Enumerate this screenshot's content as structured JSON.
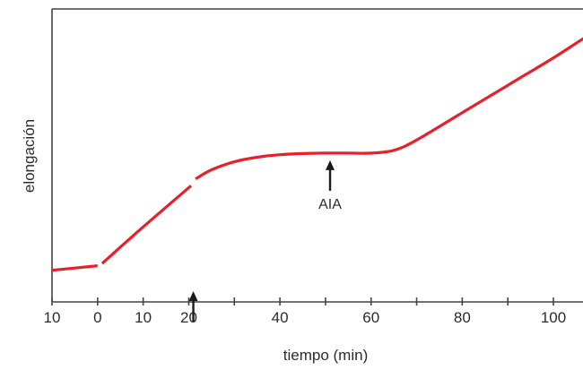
{
  "chart_data": {
    "type": "line",
    "title": "",
    "xlabel": "tiempo (min)",
    "ylabel": "elongación",
    "xlim": [
      -10,
      107
    ],
    "ylim": [
      0,
      100
    ],
    "grid": false,
    "line_color": "#e8202a",
    "x_ticks": [
      {
        "x": -10,
        "label": "10"
      },
      {
        "x": 0,
        "label": "0"
      },
      {
        "x": 10,
        "label": "10"
      },
      {
        "x": 20,
        "label": "20"
      },
      {
        "x": 30,
        "label": ""
      },
      {
        "x": 40,
        "label": "40"
      },
      {
        "x": 50,
        "label": ""
      },
      {
        "x": 60,
        "label": "60"
      },
      {
        "x": 70,
        "label": ""
      },
      {
        "x": 80,
        "label": "80"
      },
      {
        "x": 90,
        "label": ""
      },
      {
        "x": 100,
        "label": "100"
      }
    ],
    "series": [
      {
        "segments": [
          [
            [
              -10,
              6
            ],
            [
              0,
              8
            ]
          ],
          [
            [
              1,
              9
            ],
            [
              10,
              25
            ],
            [
              20.5,
              43
            ]
          ],
          [
            [
              21.5,
              46
            ],
            [
              25,
              50
            ],
            [
              30,
              53.5
            ],
            [
              35,
              55.5
            ],
            [
              40,
              56.6
            ],
            [
              45,
              57.1
            ],
            [
              50,
              57.3
            ],
            [
              55,
              57.3
            ],
            [
              60,
              57.3
            ],
            [
              65,
              58.5
            ],
            [
              70,
              63
            ],
            [
              80,
              75
            ],
            [
              90,
              87
            ],
            [
              100,
              99
            ],
            [
              107,
              108
            ]
          ]
        ]
      }
    ],
    "annotations": [
      {
        "x": 21,
        "label": ""
      },
      {
        "x": 51,
        "label": "AIA"
      }
    ]
  }
}
